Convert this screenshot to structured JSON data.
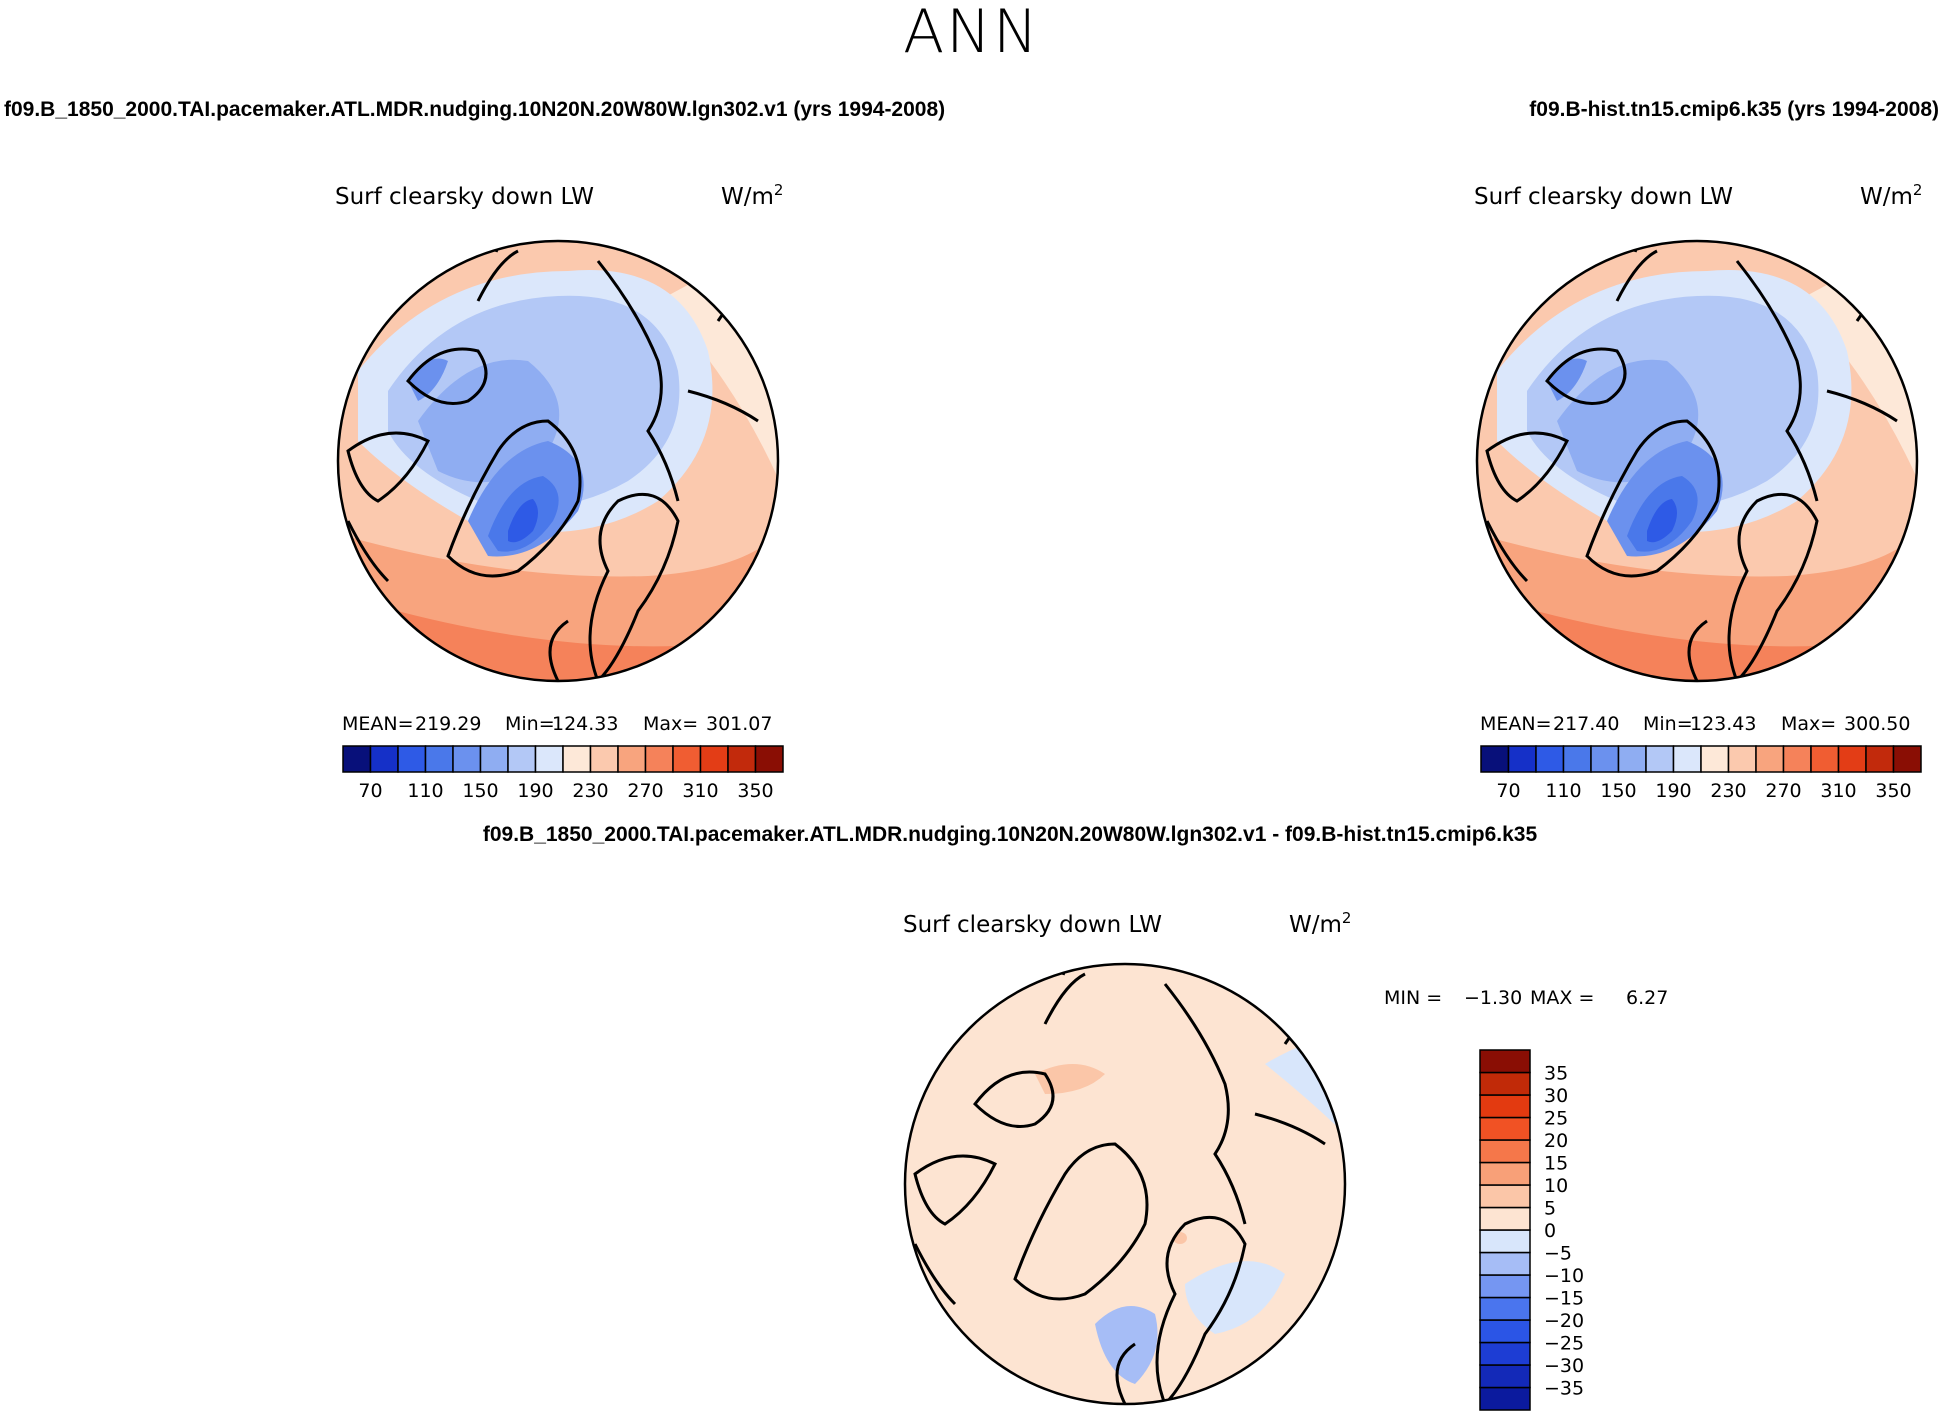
{
  "page": {
    "title": "ANN"
  },
  "cases": {
    "left_title": "f09.B_1850_2000.TAI.pacemaker.ATL.MDR.nudging.10N20N.20W80W.lgn302.v1 (yrs 1994-2008)",
    "right_title": "f09.B-hist.tn15.cmip6.k35 (yrs 1994-2008)",
    "diff_title": "f09.B_1850_2000.TAI.pacemaker.ATL.MDR.nudging.10N20N.20W80W.lgn302.v1 - f09.B-hist.tn15.cmip6.k35"
  },
  "panels": {
    "left": {
      "variable": "Surf clearsky down LW",
      "units": "W/m",
      "units_sup": "2",
      "stats": {
        "mean_label": "MEAN=",
        "mean": "219.29",
        "min_label": "Min=",
        "min": "124.33",
        "max_label": "Max=",
        "max": "301.07"
      }
    },
    "right": {
      "variable": "Surf clearsky down LW",
      "units": "W/m",
      "units_sup": "2",
      "stats": {
        "mean_label": "MEAN=",
        "mean": "217.40",
        "min_label": "Min=",
        "min": "123.43",
        "max_label": "Max=",
        "max": "300.50"
      }
    },
    "diff": {
      "variable": "Surf clearsky down LW",
      "units": "W/m",
      "units_sup": "2",
      "stats": {
        "min_label": "MIN =",
        "min": "−1.30",
        "max_label": "MAX =",
        "max": "6.27"
      }
    }
  },
  "chart_data": [
    {
      "type": "heatmap",
      "title": "Surf clearsky down LW",
      "units": "W/m2",
      "projection": "north polar stereographic",
      "colorbar": {
        "orientation": "horizontal",
        "bounds": [
          50,
          70,
          90,
          110,
          130,
          150,
          170,
          190,
          210,
          230,
          250,
          270,
          290,
          310,
          330,
          350,
          370
        ],
        "tick_values": [
          70,
          110,
          150,
          190,
          230,
          270,
          310,
          350
        ],
        "tick_labels": [
          "70",
          "110",
          "150",
          "190",
          "230",
          "270",
          "310",
          "350"
        ],
        "colors": [
          "#08107a",
          "#1530c8",
          "#2e5ae6",
          "#4a78ea",
          "#6b91ee",
          "#8fadf2",
          "#b3c8f6",
          "#dbe7fb",
          "#fde8d8",
          "#fbc9ae",
          "#f8a47e",
          "#f5825a",
          "#f05d32",
          "#e33d16",
          "#c22a0c",
          "#8a0e04"
        ]
      },
      "stats": {
        "mean": 219.29,
        "min": 124.33,
        "max": 301.07
      }
    },
    {
      "type": "heatmap",
      "title": "Surf clearsky down LW",
      "units": "W/m2",
      "projection": "north polar stereographic",
      "colorbar": {
        "orientation": "horizontal",
        "bounds": [
          50,
          70,
          90,
          110,
          130,
          150,
          170,
          190,
          210,
          230,
          250,
          270,
          290,
          310,
          330,
          350,
          370
        ],
        "tick_values": [
          70,
          110,
          150,
          190,
          230,
          270,
          310,
          350
        ],
        "tick_labels": [
          "70",
          "110",
          "150",
          "190",
          "230",
          "270",
          "310",
          "350"
        ],
        "colors": [
          "#08107a",
          "#1530c8",
          "#2e5ae6",
          "#4a78ea",
          "#6b91ee",
          "#8fadf2",
          "#b3c8f6",
          "#dbe7fb",
          "#fde8d8",
          "#fbc9ae",
          "#f8a47e",
          "#f5825a",
          "#f05d32",
          "#e33d16",
          "#c22a0c",
          "#8a0e04"
        ]
      },
      "stats": {
        "mean": 217.4,
        "min": 123.43,
        "max": 300.5
      }
    },
    {
      "type": "heatmap",
      "title": "Surf clearsky down LW",
      "units": "W/m2",
      "projection": "north polar stereographic",
      "colorbar": {
        "orientation": "vertical",
        "bounds": [
          -40,
          -35,
          -30,
          -25,
          -20,
          -15,
          -10,
          -5,
          0,
          5,
          10,
          15,
          20,
          25,
          30,
          35,
          40
        ],
        "tick_values": [
          35,
          30,
          25,
          20,
          15,
          10,
          5,
          0,
          -5,
          -10,
          -15,
          -20,
          -25,
          -30,
          -35
        ],
        "tick_labels": [
          "35",
          "30",
          "25",
          "20",
          "15",
          "10",
          "5",
          "0",
          "−5",
          "−10",
          "−15",
          "−20",
          "−25",
          "−30",
          "−35"
        ],
        "colors": [
          "#0b1a9e",
          "#1329b8",
          "#1d3dd4",
          "#2b55e6",
          "#4a75ee",
          "#7596f2",
          "#a6bdf6",
          "#d8e6fb",
          "#fde4d2",
          "#fbc6a8",
          "#f8a078",
          "#f5774a",
          "#f15224",
          "#e33a10",
          "#c12a08",
          "#8a0e04"
        ]
      },
      "stats": {
        "min": -1.3,
        "max": 6.27
      }
    }
  ]
}
